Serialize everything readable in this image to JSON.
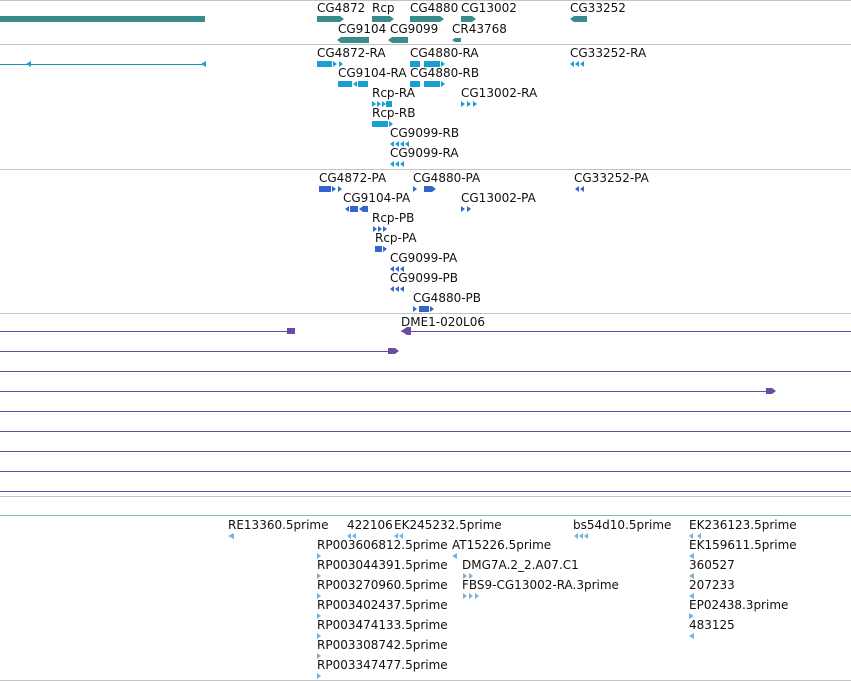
{
  "colors": {
    "gene": "#3a8c8c",
    "rna_line": "#1a8fb0",
    "rna": "#1aa0d0",
    "protein": "#3366cc",
    "clone": "#6a4ca0",
    "est": "#7ab0d8",
    "separator": "#c4c4c4"
  },
  "tracks": {
    "genes": {
      "labels": [
        "CG4872",
        "Rcp",
        "CG4880",
        "CG13002",
        "CG33252",
        "CG9104",
        "CG9099",
        "CR43768"
      ]
    },
    "transcripts": {
      "labels": [
        "CG4872-RA",
        "CG4880-RA",
        "CG33252-RA",
        "CG9104-RA",
        "CG4880-RB",
        "Rcp-RA",
        "CG13002-RA",
        "Rcp-RB",
        "CG9099-RB",
        "CG9099-RA"
      ]
    },
    "proteins": {
      "labels": [
        "CG4872-PA",
        "CG4880-PA",
        "CG33252-PA",
        "CG9104-PA",
        "CG13002-PA",
        "Rcp-PB",
        "Rcp-PA",
        "CG9099-PA",
        "CG9099-PB",
        "CG4880-PB"
      ]
    },
    "clones": {
      "labels": [
        "DME1-020L06"
      ]
    },
    "ests": {
      "labels": [
        "RE13360.5prime",
        "422106",
        "EK245232.5prime",
        "bs54d10.5prime",
        "EK236123.5prime",
        "RP003606812.5prime",
        "AT15226.5prime",
        "EK159611.5prime",
        "RP003044391.5prime",
        "DMG7A.2_2.A07.C1",
        "360527",
        "RP003270960.5prime",
        "FBS9-CG13002-RA.3prime",
        "207233",
        "RP003402437.5prime",
        "EP02438.3prime",
        "RP003474133.5prime",
        "483125",
        "RP003308742.5prime",
        "RP003347477.5prime"
      ]
    }
  }
}
